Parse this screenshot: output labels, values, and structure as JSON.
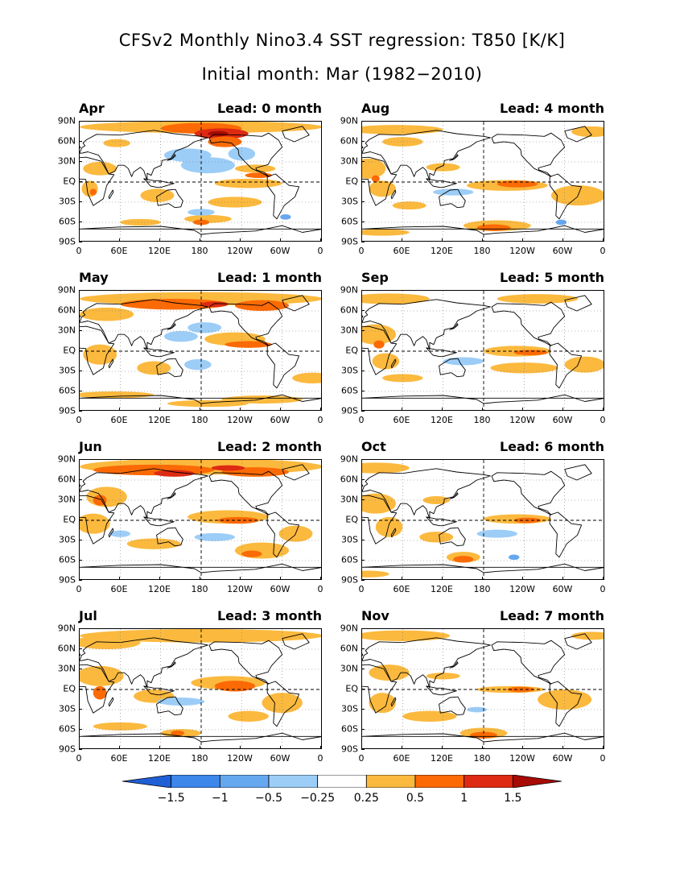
{
  "title": "CFSv2 Monthly Nino3.4 SST regression: T850 [K/K]",
  "subtitle": "Initial month: Mar (1982−2010)",
  "colors": {
    "neg3": "#1f5fd6",
    "neg2": "#3d86ea",
    "neg1": "#66a8f0",
    "neg0": "#9ccdf7",
    "pos0": "#fbb93e",
    "pos1": "#fb6a05",
    "pos2": "#de2a12",
    "pos3": "#a80a05"
  },
  "y_axis_labels": [
    "90N",
    "60N",
    "30N",
    "EQ",
    "30S",
    "60S",
    "90S"
  ],
  "panels": [
    {
      "month": "Apr",
      "lead": "Lead: 0 month",
      "x_labels": [
        "0",
        "60E",
        "120E",
        "180",
        "120W",
        "60W",
        "0"
      ]
    },
    {
      "month": "Aug",
      "lead": "Lead: 4 month",
      "x_labels": [
        "0",
        "60E",
        "120E",
        "180",
        "120W",
        "60W",
        "0"
      ]
    },
    {
      "month": "May",
      "lead": "Lead: 1 month",
      "x_labels": [
        "0",
        "60E",
        "120E",
        "180",
        "120W",
        "60W",
        "0"
      ]
    },
    {
      "month": "Sep",
      "lead": "Lead: 5 month",
      "x_labels": [
        "0",
        "60E",
        "120E",
        "180",
        "120W",
        "60W",
        "0"
      ]
    },
    {
      "month": "Jun",
      "lead": "Lead: 2 month",
      "x_labels": [
        "0",
        "60E",
        "120E",
        "180",
        "120W",
        "60W",
        "0"
      ]
    },
    {
      "month": "Oct",
      "lead": "Lead: 6 month",
      "x_labels": [
        "0",
        "60E",
        "120E",
        "180",
        "120W",
        "60W",
        "0"
      ]
    },
    {
      "month": "Jul",
      "lead": "Lead: 3 month",
      "x_labels": [
        "0",
        "60E",
        "120E",
        "180",
        "120W",
        "60W",
        "0"
      ]
    },
    {
      "month": "Nov",
      "lead": "Lead: 7 month",
      "x_labels": [
        "0",
        "60E",
        "120E",
        "180",
        "120W",
        "60W",
        "0"
      ]
    }
  ],
  "colorbar": {
    "labels": [
      "−1.5",
      "−1",
      "−0.5",
      "−0.25",
      "0.25",
      "0.5",
      "1",
      "1.5"
    ]
  }
}
